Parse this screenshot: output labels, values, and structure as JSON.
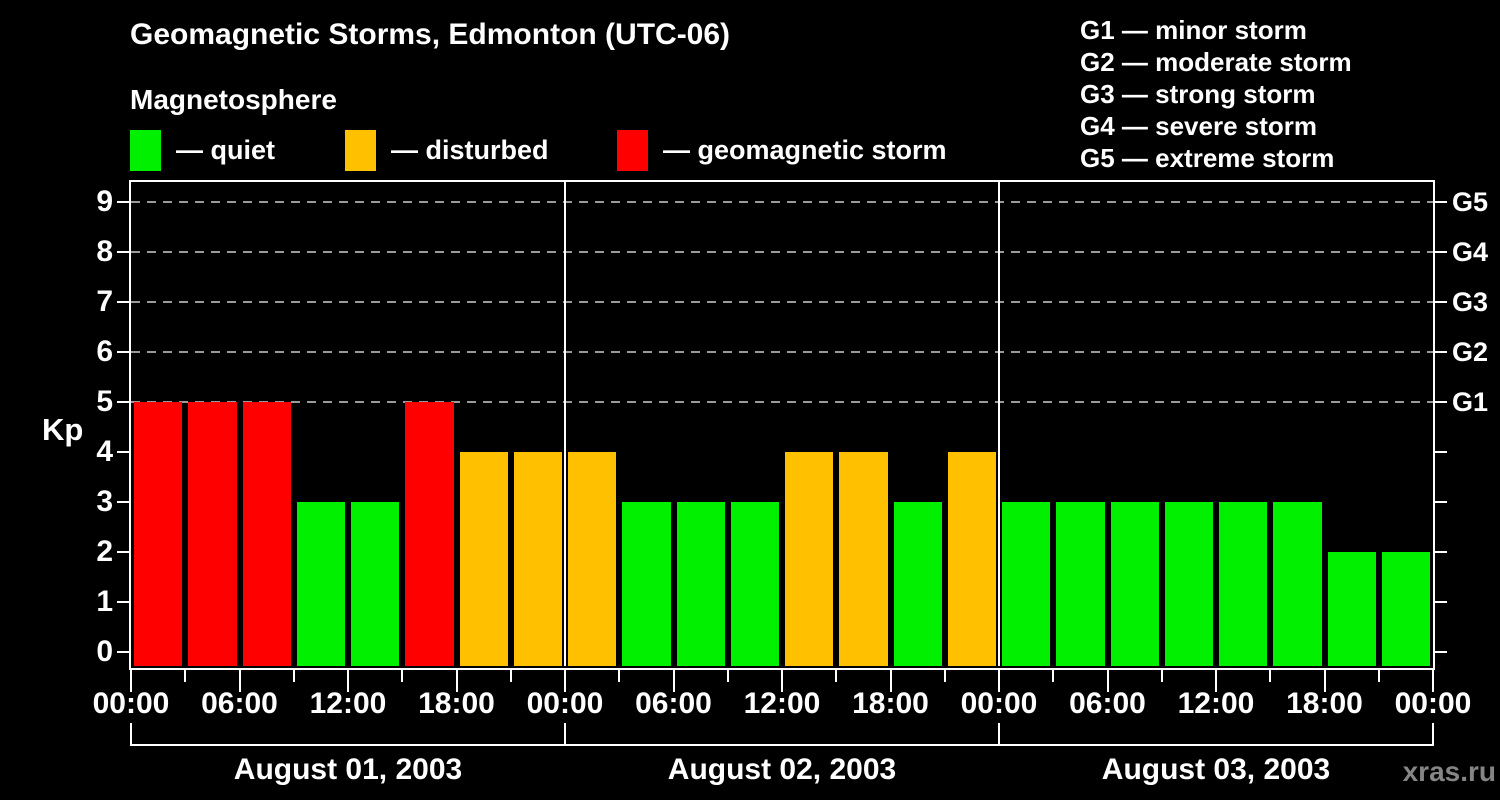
{
  "header": {
    "title": "Geomagnetic Storms, Edmonton (UTC-06)",
    "subtitle": "Magnetosphere"
  },
  "legend": {
    "items": [
      {
        "name": "quiet",
        "text": "— quiet",
        "color": "#00f000"
      },
      {
        "name": "disturbed",
        "text": "— disturbed",
        "color": "#ffc000"
      },
      {
        "name": "storm",
        "text": "— geomagnetic storm",
        "color": "#ff0000"
      }
    ]
  },
  "g_scale_legend": {
    "items": [
      {
        "text": "G1 — minor storm"
      },
      {
        "text": "G2 — moderate storm"
      },
      {
        "text": "G3 — strong storm"
      },
      {
        "text": "G4 — severe storm"
      },
      {
        "text": "G5 — extreme storm"
      }
    ]
  },
  "watermark": "xras.ru",
  "chart_data": {
    "type": "bar",
    "title": "Geomagnetic Storms, Edmonton (UTC-06)",
    "subtitle": "Magnetosphere",
    "ylabel": "Kp",
    "ylim": [
      0,
      9
    ],
    "y_ticks": [
      0,
      1,
      2,
      3,
      4,
      5,
      6,
      7,
      8,
      9
    ],
    "grid_levels_kp": [
      5,
      6,
      7,
      8,
      9
    ],
    "right_axis": [
      {
        "label": "G1",
        "kp": 5
      },
      {
        "label": "G2",
        "kp": 6
      },
      {
        "label": "G3",
        "kp": 7
      },
      {
        "label": "G4",
        "kp": 8
      },
      {
        "label": "G5",
        "kp": 9
      }
    ],
    "hours_per_bar": 3,
    "x_tick_labels": [
      "00:00",
      "06:00",
      "12:00",
      "18:00",
      "00:00",
      "06:00",
      "12:00",
      "18:00",
      "00:00",
      "06:00",
      "12:00",
      "18:00",
      "00:00"
    ],
    "days": [
      {
        "date": "August 01, 2003",
        "kp": [
          5,
          5,
          5,
          3,
          3,
          5,
          4,
          4
        ]
      },
      {
        "date": "August 02, 2003",
        "kp": [
          4,
          3,
          3,
          3,
          4,
          4,
          3,
          4
        ]
      },
      {
        "date": "August 03, 2003",
        "kp": [
          3,
          3,
          3,
          3,
          3,
          3,
          2,
          2
        ]
      }
    ],
    "color_rule": {
      "quiet_kp_max": 3,
      "disturbed_kp": 4,
      "storm_kp_min": 5
    },
    "colors": {
      "quiet": "#00f000",
      "disturbed": "#ffc000",
      "storm": "#ff0000"
    },
    "grid": "dashed horizontal at G-levels only",
    "legend_position": "top"
  }
}
